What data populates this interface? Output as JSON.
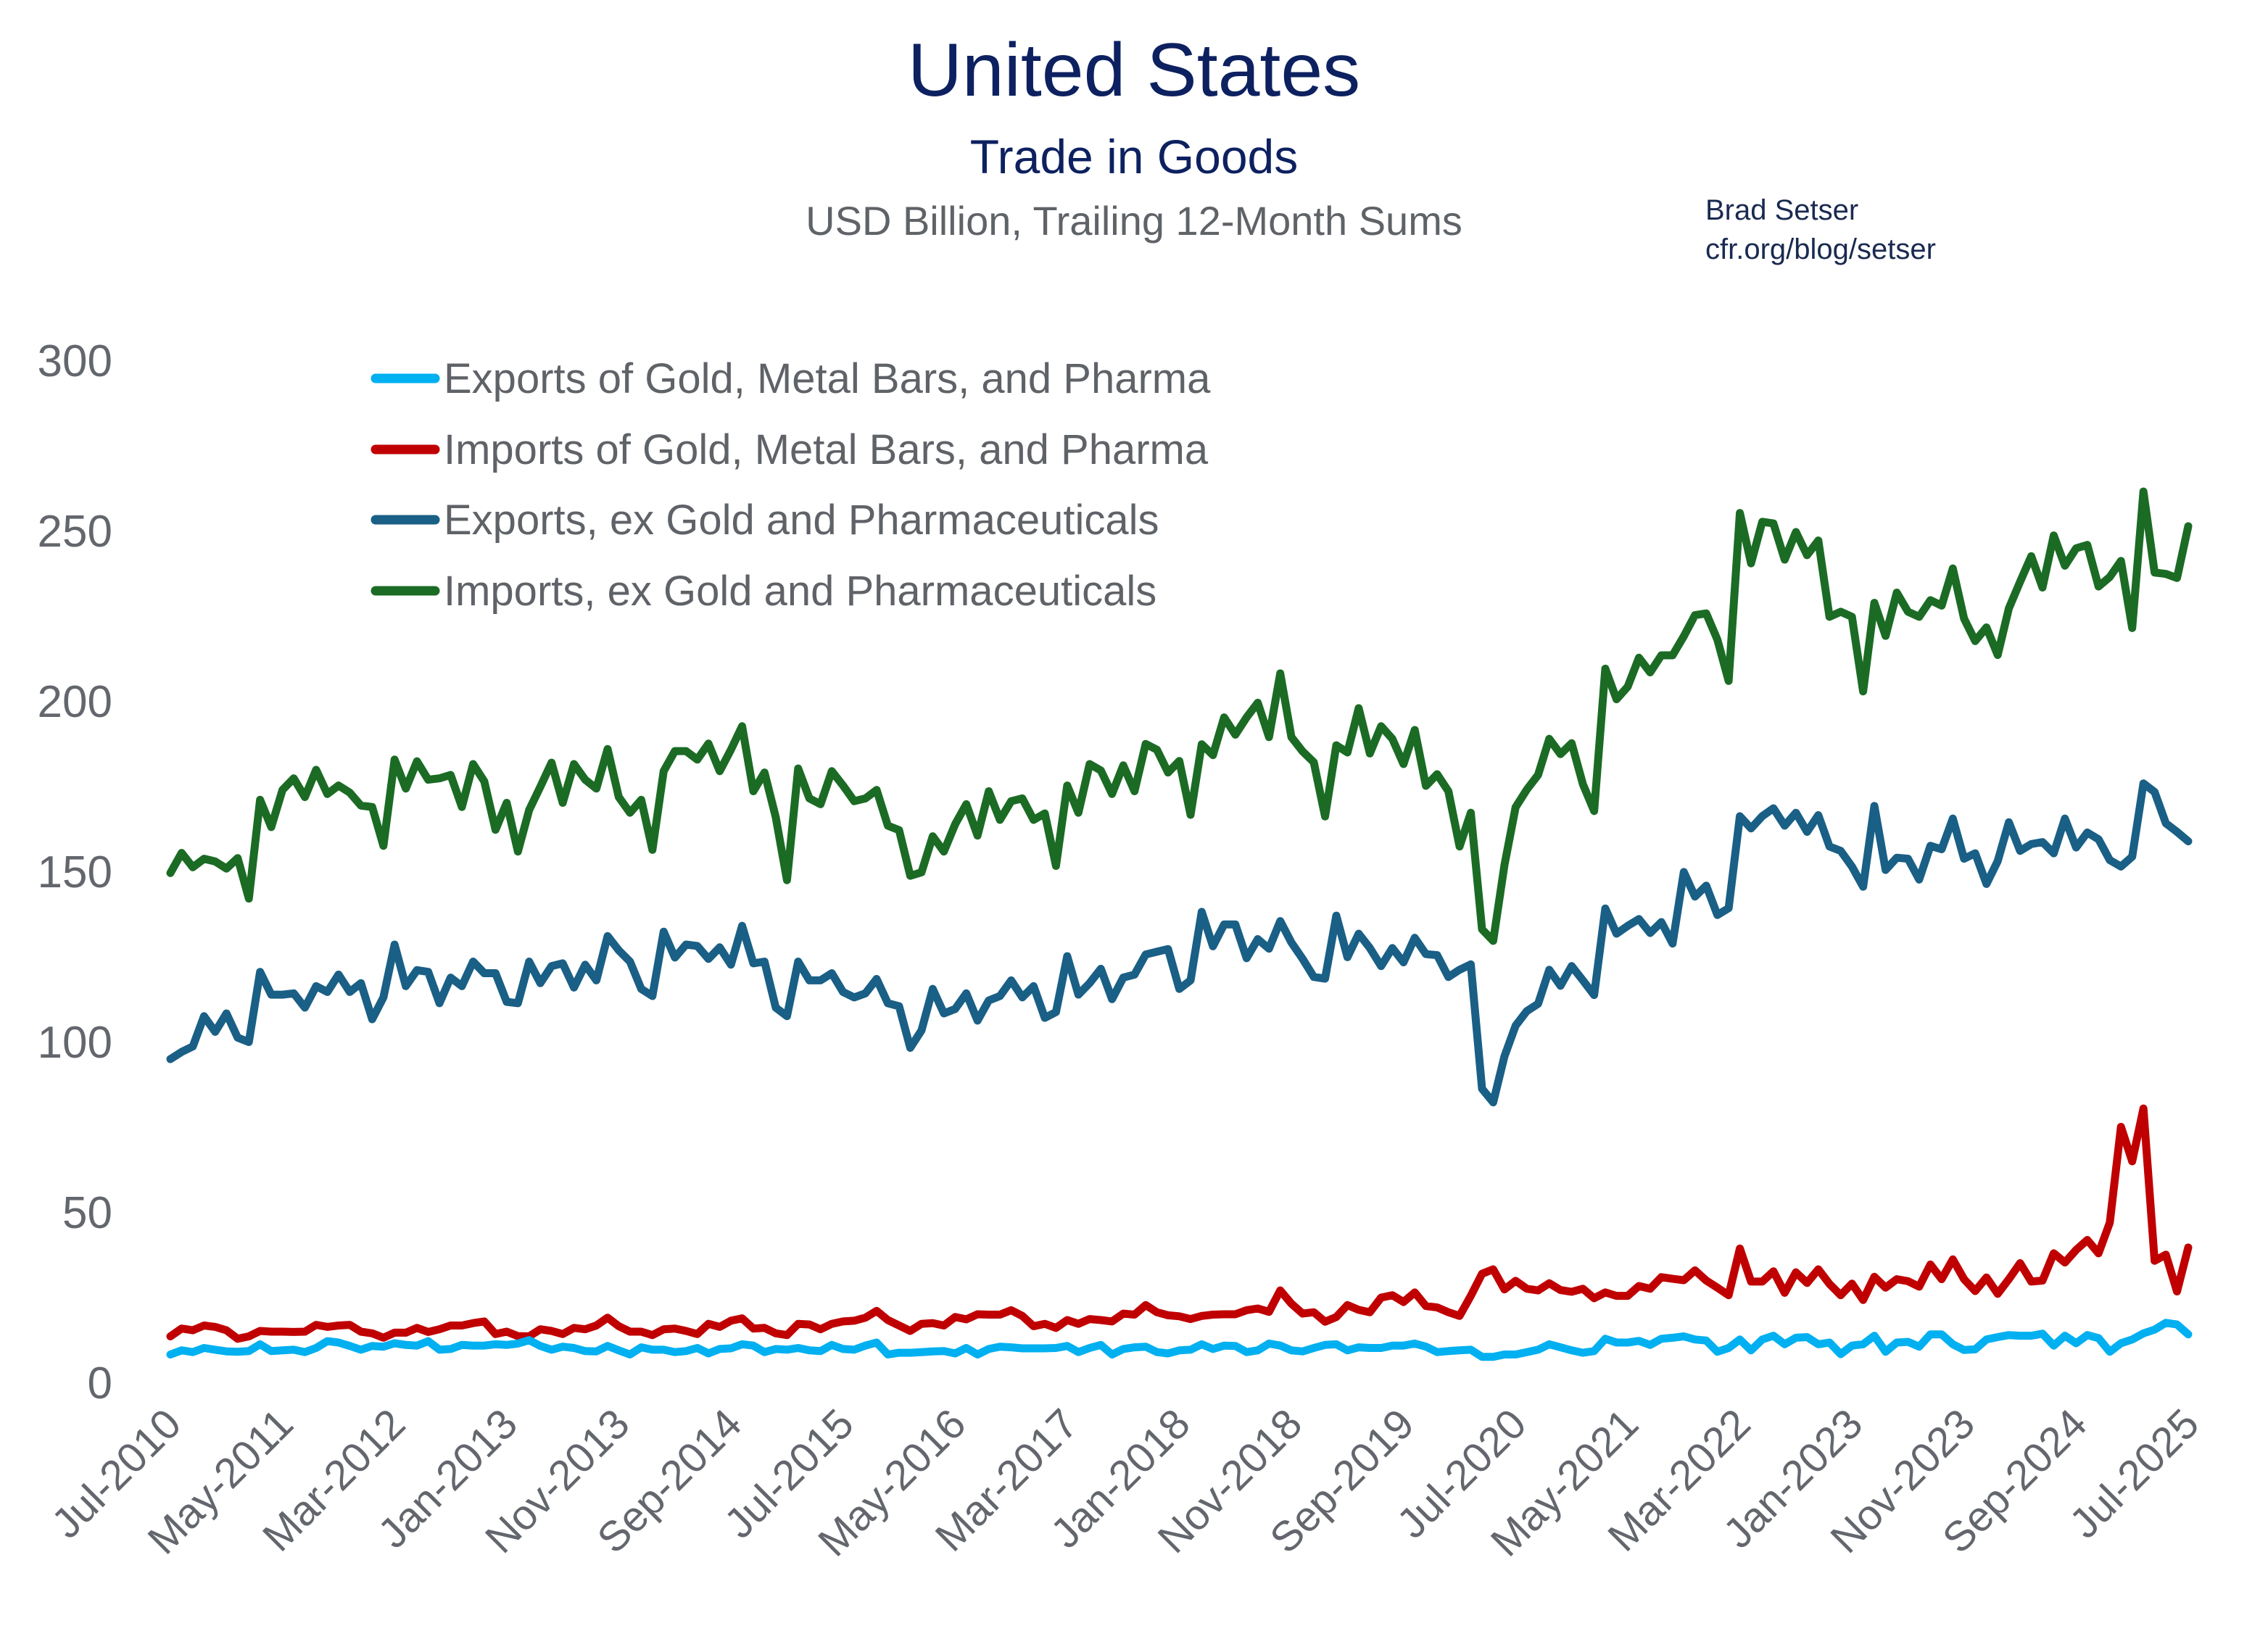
{
  "header": {
    "title": "United States",
    "subtitle": "Trade in Goods",
    "units": "USD Billion, Trailing 12-Month Sums",
    "credit_name": "Brad Setser",
    "credit_url": "cfr.org/blog/setser"
  },
  "chart_data": {
    "type": "line",
    "title": "United States",
    "subtitle": "Trade in Goods — USD Billion, Trailing 12-Month Sums",
    "xlabel": "",
    "ylabel": "",
    "x_start": "Jul-2010",
    "x_end": "Jul-2025",
    "x_frequency": "monthly",
    "x_tick_labels": [
      "Jul-2010",
      "May-2011",
      "Mar-2012",
      "Jan-2013",
      "Nov-2013",
      "Sep-2014",
      "Jul-2015",
      "May-2016",
      "Mar-2017",
      "Jan-2018",
      "Nov-2018",
      "Sep-2019",
      "Jul-2020",
      "May-2021",
      "Mar-2022",
      "Jan-2023",
      "Nov-2023",
      "Sep-2024",
      "Jul-2025"
    ],
    "x_tick_every_months": 10,
    "y_ticks": [
      0,
      50,
      100,
      150,
      200,
      250,
      300
    ],
    "ylim": [
      0,
      300
    ],
    "grid": false,
    "legend_position": "top-left",
    "series": [
      {
        "name": "Exports of Gold, Metal Bars, and Pharma",
        "color": "#00b0f0",
        "values": [
          8.2,
          9.4,
          8.9,
          10.1,
          9.6,
          9.1,
          9.0,
          9.2,
          11.2,
          9.2,
          9.4,
          9.6,
          8.9,
          10.1,
          12.1,
          11.7,
          10.7,
          9.6,
          10.7,
          10.5,
          11.5,
          11.0,
          10.8,
          12.1,
          9.6,
          9.8,
          11.0,
          10.8,
          10.8,
          11.2,
          11.0,
          11.4,
          12.4,
          10.7,
          9.6,
          10.5,
          10.1,
          9.2,
          9.1,
          10.7,
          9.4,
          8.2,
          10.3,
          9.6,
          9.6,
          8.9,
          9.2,
          10.1,
          8.5,
          9.8,
          10.0,
          11.2,
          10.8,
          8.9,
          9.8,
          9.6,
          10.1,
          9.4,
          9.2,
          11.0,
          9.8,
          9.6,
          10.8,
          11.7,
          8.2,
          8.7,
          8.7,
          8.9,
          9.1,
          9.2,
          8.5,
          10.1,
          8.2,
          9.8,
          10.5,
          10.3,
          10.0,
          10.0,
          10.0,
          10.1,
          10.7,
          8.9,
          10.1,
          11.0,
          8.2,
          9.8,
          10.3,
          10.5,
          8.9,
          8.5,
          9.4,
          9.6,
          11.2,
          9.8,
          10.8,
          10.7,
          8.9,
          9.4,
          11.4,
          10.8,
          9.4,
          9.1,
          10.1,
          11.0,
          11.2,
          9.4,
          10.3,
          10.1,
          10.1,
          10.8,
          10.8,
          11.4,
          10.5,
          8.9,
          9.2,
          9.4,
          9.6,
          7.5,
          7.5,
          8.2,
          8.2,
          8.9,
          9.6,
          11.2,
          10.3,
          9.4,
          8.7,
          9.2,
          12.8,
          11.7,
          11.7,
          12.2,
          11.0,
          12.8,
          13.1,
          13.5,
          12.6,
          12.3,
          9.0,
          10.1,
          12.6,
          9.4,
          12.6,
          13.7,
          11.2,
          13.1,
          13.3,
          11.2,
          11.7,
          8.3,
          10.8,
          11.2,
          13.7,
          9.0,
          11.7,
          11.9,
          10.5,
          14.1,
          14.1,
          11.2,
          9.5,
          9.7,
          12.6,
          13.3,
          13.9,
          13.7,
          13.7,
          14.3,
          10.8,
          13.7,
          11.5,
          13.9,
          13.0,
          9.0,
          11.5,
          12.6,
          14.4,
          15.5,
          17.5,
          17.0,
          14.1
        ]
      },
      {
        "name": "Imports of Gold, Metal Bars, and Pharma",
        "color": "#c00000",
        "values": [
          13.5,
          15.8,
          15.3,
          16.7,
          16.3,
          15.3,
          12.8,
          13.5,
          15.1,
          14.9,
          14.9,
          14.8,
          14.9,
          16.9,
          16.3,
          16.7,
          16.9,
          14.9,
          14.4,
          13.1,
          14.6,
          14.6,
          16.0,
          14.8,
          15.6,
          16.7,
          16.7,
          17.4,
          17.9,
          14.2,
          14.9,
          13.6,
          13.5,
          15.6,
          15.1,
          14.2,
          16.0,
          15.6,
          16.7,
          19.0,
          16.5,
          14.9,
          14.9,
          13.9,
          15.6,
          15.8,
          15.1,
          14.2,
          17.2,
          16.3,
          18.1,
          18.8,
          15.8,
          16.0,
          14.4,
          13.9,
          17.2,
          17.0,
          15.6,
          17.2,
          17.9,
          18.1,
          19.0,
          21.0,
          18.3,
          16.7,
          15.1,
          17.2,
          17.4,
          16.7,
          19.2,
          18.5,
          20.0,
          19.9,
          19.9,
          21.2,
          19.5,
          16.5,
          17.2,
          16.0,
          18.3,
          17.2,
          18.6,
          18.3,
          17.9,
          20.2,
          19.9,
          22.7,
          20.6,
          19.7,
          19.4,
          18.6,
          19.5,
          19.9,
          20.0,
          20.0,
          21.2,
          21.7,
          20.7,
          27.0,
          23.1,
          20.2,
          20.6,
          17.8,
          19.2,
          22.7,
          21.3,
          20.6,
          24.9,
          25.6,
          23.6,
          26.4,
          22.4,
          22.0,
          20.6,
          19.5,
          25.4,
          31.9,
          33.2,
          27.3,
          29.8,
          27.5,
          27.0,
          29.1,
          27.1,
          26.6,
          27.5,
          24.7,
          26.4,
          25.4,
          25.4,
          28.3,
          27.5,
          30.9,
          30.4,
          30.0,
          32.9,
          29.9,
          27.8,
          25.6,
          39.3,
          29.6,
          29.6,
          32.6,
          26.3,
          32.3,
          29.2,
          33.2,
          28.9,
          25.6,
          29.0,
          24.2,
          31.0,
          27.8,
          30.3,
          29.7,
          28.1,
          34.6,
          30.3,
          36.1,
          30.3,
          26.8,
          30.8,
          26.0,
          30.3,
          35.0,
          29.6,
          29.9,
          37.9,
          35.2,
          38.9,
          41.8,
          37.9,
          46.9,
          75.0,
          64.9,
          80.4,
          35.7,
          37.5,
          26.7,
          39.6
        ]
      },
      {
        "name": "Exports, ex Gold and Pharmaceuticals",
        "color": "#1a5f85",
        "values": [
          94.9,
          97.0,
          98.6,
          107.5,
          102.9,
          108.3,
          101.2,
          99.9,
          120.5,
          113.8,
          113.8,
          114.2,
          110.0,
          116.3,
          114.6,
          119.7,
          114.6,
          117.2,
          106.6,
          113.0,
          128.5,
          116.3,
          121.0,
          120.5,
          111.3,
          118.8,
          116.3,
          123.5,
          120.1,
          120.1,
          111.7,
          111.3,
          123.5,
          117.2,
          122.2,
          123.0,
          115.9,
          122.6,
          118.0,
          131.0,
          126.8,
          123.5,
          115.5,
          113.4,
          132.3,
          124.7,
          128.5,
          128.1,
          124.3,
          127.7,
          122.6,
          134.0,
          123.0,
          123.5,
          110.0,
          107.5,
          123.5,
          118.0,
          118.0,
          120.1,
          114.6,
          113.0,
          114.2,
          118.4,
          111.3,
          110.4,
          98.2,
          103.3,
          115.5,
          108.3,
          109.6,
          114.2,
          106.2,
          112.1,
          113.4,
          118.0,
          113.0,
          116.3,
          107.0,
          108.7,
          125.1,
          113.8,
          117.2,
          121.4,
          112.5,
          118.8,
          119.7,
          125.6,
          126.4,
          127.2,
          115.5,
          118.0,
          138.1,
          128.0,
          134.4,
          134.4,
          124.5,
          130.1,
          127.3,
          135.4,
          129.1,
          124.3,
          119.0,
          118.5,
          137.0,
          124.8,
          131.7,
          127.5,
          122.2,
          127.5,
          123.3,
          130.5,
          125.7,
          125.4,
          119.0,
          121.1,
          122.7,
          86.2,
          82.2,
          95.7,
          104.7,
          109.0,
          111.1,
          121.1,
          116.4,
          122.2,
          118.0,
          113.7,
          139.1,
          131.7,
          134.0,
          136.0,
          131.9,
          135.1,
          128.8,
          149.8,
          142.6,
          145.8,
          137.2,
          139.2,
          166.2,
          162.6,
          166.2,
          168.5,
          163.4,
          167.2,
          161.6,
          166.5,
          157.3,
          156.0,
          151.4,
          145.5,
          169.2,
          150.4,
          154.0,
          153.7,
          147.6,
          157.5,
          156.5,
          165.5,
          153.7,
          155.3,
          146.3,
          153.0,
          164.4,
          156.0,
          158.0,
          158.6,
          155.3,
          165.5,
          157.0,
          161.4,
          159.4,
          153.3,
          151.4,
          154.3,
          175.8,
          173.3,
          164.1,
          161.6,
          158.8
        ]
      },
      {
        "name": "Imports, ex Gold and Pharmaceuticals",
        "color": "#1b6b25",
        "values": [
          149.5,
          155.4,
          151.2,
          153.7,
          152.9,
          150.8,
          153.9,
          142.0,
          171.0,
          163.0,
          173.9,
          177.3,
          171.8,
          179.8,
          172.7,
          175.2,
          173.1,
          169.3,
          168.9,
          157.5,
          182.8,
          174.3,
          182.3,
          176.9,
          177.3,
          178.3,
          168.9,
          181.5,
          176.4,
          162.2,
          170.1,
          155.8,
          168.0,
          174.8,
          181.9,
          170.1,
          181.5,
          176.9,
          174.3,
          185.9,
          171.8,
          167.2,
          171.0,
          156.3,
          179.4,
          185.3,
          185.3,
          182.8,
          187.5,
          179.4,
          185.7,
          192.6,
          173.5,
          179.0,
          165.9,
          147.4,
          180.2,
          171.4,
          169.7,
          179.4,
          175.2,
          170.6,
          171.4,
          173.9,
          163.4,
          162.1,
          148.7,
          149.7,
          160.3,
          155.8,
          163.8,
          169.7,
          160.5,
          173.5,
          165.1,
          170.6,
          171.4,
          165.1,
          167.0,
          151.6,
          175.2,
          167.2,
          181.5,
          179.6,
          172.7,
          181.1,
          173.5,
          187.4,
          185.7,
          179.0,
          182.4,
          166.6,
          187.3,
          184.1,
          195.2,
          190.1,
          195.2,
          199.5,
          189.4,
          208.1,
          189.4,
          185.2,
          182.0,
          166.1,
          187.0,
          184.9,
          197.9,
          184.6,
          192.6,
          188.9,
          181.5,
          191.5,
          175.1,
          178.5,
          173.5,
          157.3,
          167.2,
          133.0,
          129.6,
          151.8,
          168.8,
          174.0,
          178.3,
          188.9,
          184.4,
          187.6,
          175.6,
          167.7,
          209.5,
          200.5,
          204.2,
          212.7,
          208.4,
          213.4,
          213.4,
          219.0,
          225.2,
          225.7,
          218.0,
          205.9,
          255.2,
          240.4,
          252.6,
          252.1,
          241.5,
          249.6,
          242.8,
          247.1,
          224.7,
          226.2,
          224.7,
          202.8,
          228.8,
          219.1,
          231.8,
          226.2,
          224.7,
          229.6,
          228.0,
          238.9,
          224.2,
          217.6,
          221.6,
          213.5,
          227.2,
          235.0,
          242.5,
          233.3,
          248.6,
          239.7,
          244.8,
          245.8,
          233.6,
          236.4,
          241.1,
          221.4,
          261.5,
          237.7,
          237.3,
          236.1,
          251.3
        ]
      }
    ]
  }
}
